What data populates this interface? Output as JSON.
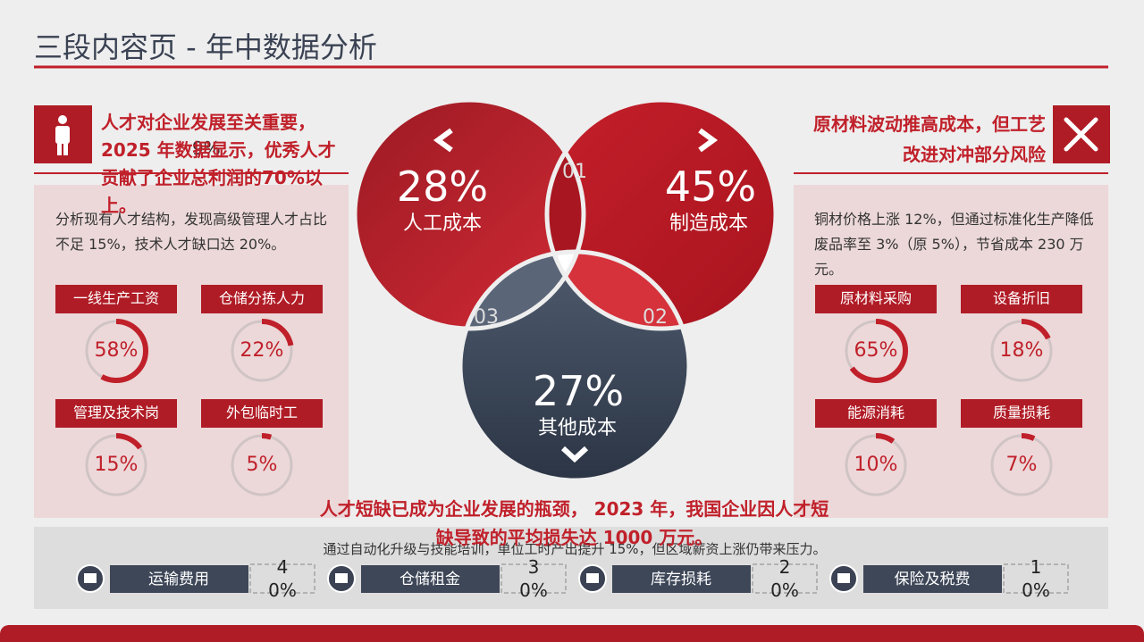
{
  "header": {
    "title": "三段内容页 - 年中数据分析"
  },
  "left": {
    "headline": "人才对企业发展至关重要，2025 年数据显示，优秀人才贡献了企业总利润的70%以上。",
    "overlap_text": "9%",
    "body": "分析现有人才结构，发现高级管理人才占比不足 15%，技术人才缺口达 20%。",
    "gauges": [
      {
        "label": "一线生产工资",
        "value": 58,
        "text": "58%"
      },
      {
        "label": "仓储分拣人力",
        "value": 22,
        "text": "22%"
      },
      {
        "label": "管理及技术岗",
        "value": 15,
        "text": "15%"
      },
      {
        "label": "外包临时工",
        "value": 5,
        "text": "5%"
      }
    ]
  },
  "right": {
    "headline": "原材料波动推高成本，但工艺改进对冲部分风险",
    "body": "铜材价格上涨 12%，但通过标准化生产降低废品率至 3%（原 5%），节省成本 230 万元。",
    "gauges": [
      {
        "label": "原材料采购",
        "value": 65,
        "text": "65%"
      },
      {
        "label": "设备折旧",
        "value": 18,
        "text": "18%"
      },
      {
        "label": "能源消耗",
        "value": 10,
        "text": "10%"
      },
      {
        "label": "质量损耗",
        "value": 7,
        "text": "7%"
      }
    ]
  },
  "venn": {
    "segments": [
      {
        "text": "28%",
        "label": "人工成本"
      },
      {
        "text": "45%",
        "label": "制造成本"
      },
      {
        "text": "27%",
        "label": "其他成本"
      }
    ],
    "regions": [
      "01",
      "02",
      "03"
    ]
  },
  "bottom": {
    "body": "通过自动化升级与技能培训，单位工时产出提升 15%，但区域薪资上涨仍带来压力。",
    "headline": "人才短缺已成为企业发展的瓶颈， 2023 年，我国企业因人才短缺导致的平均损失达 1000 万元。",
    "items": [
      {
        "label": "运输费用",
        "text": "40%"
      },
      {
        "label": "仓储租金",
        "text": "30%"
      },
      {
        "label": "库存损耗",
        "text": "20%"
      },
      {
        "label": "保险及税费",
        "text": "10%"
      }
    ]
  }
}
